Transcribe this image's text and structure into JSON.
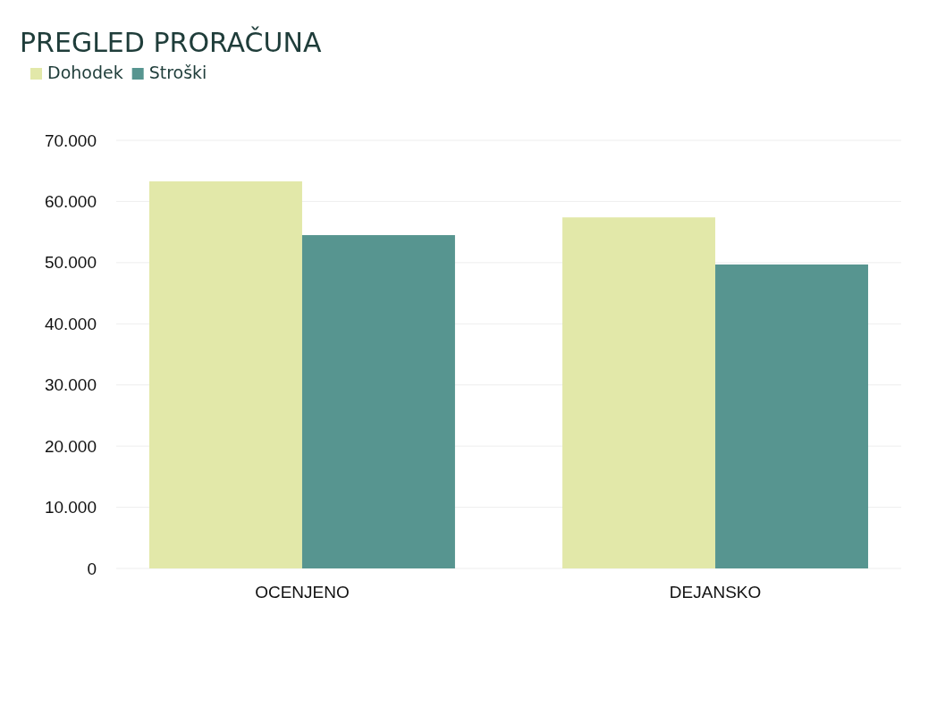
{
  "chart_data": {
    "type": "bar",
    "title": "PREGLED PRORAČUNA",
    "categories": [
      "OCENJENO",
      "DEJANSKO"
    ],
    "series": [
      {
        "name": "Dohodek",
        "color": "#e2e8a9",
        "values": [
          63300,
          57400
        ]
      },
      {
        "name": "Stroški",
        "color": "#579590",
        "values": [
          54500,
          49700
        ]
      }
    ],
    "ylim": [
      0,
      70000
    ],
    "yticks": [
      {
        "value": 0,
        "label": "0"
      },
      {
        "value": 10000,
        "label": "10.000"
      },
      {
        "value": 20000,
        "label": "20.000"
      },
      {
        "value": 30000,
        "label": "30.000"
      },
      {
        "value": 40000,
        "label": "40.000"
      },
      {
        "value": 50000,
        "label": "50.000"
      },
      {
        "value": 60000,
        "label": "60.000"
      },
      {
        "value": 70000,
        "label": "70.000"
      }
    ],
    "grid": "y",
    "legend": "top left"
  }
}
